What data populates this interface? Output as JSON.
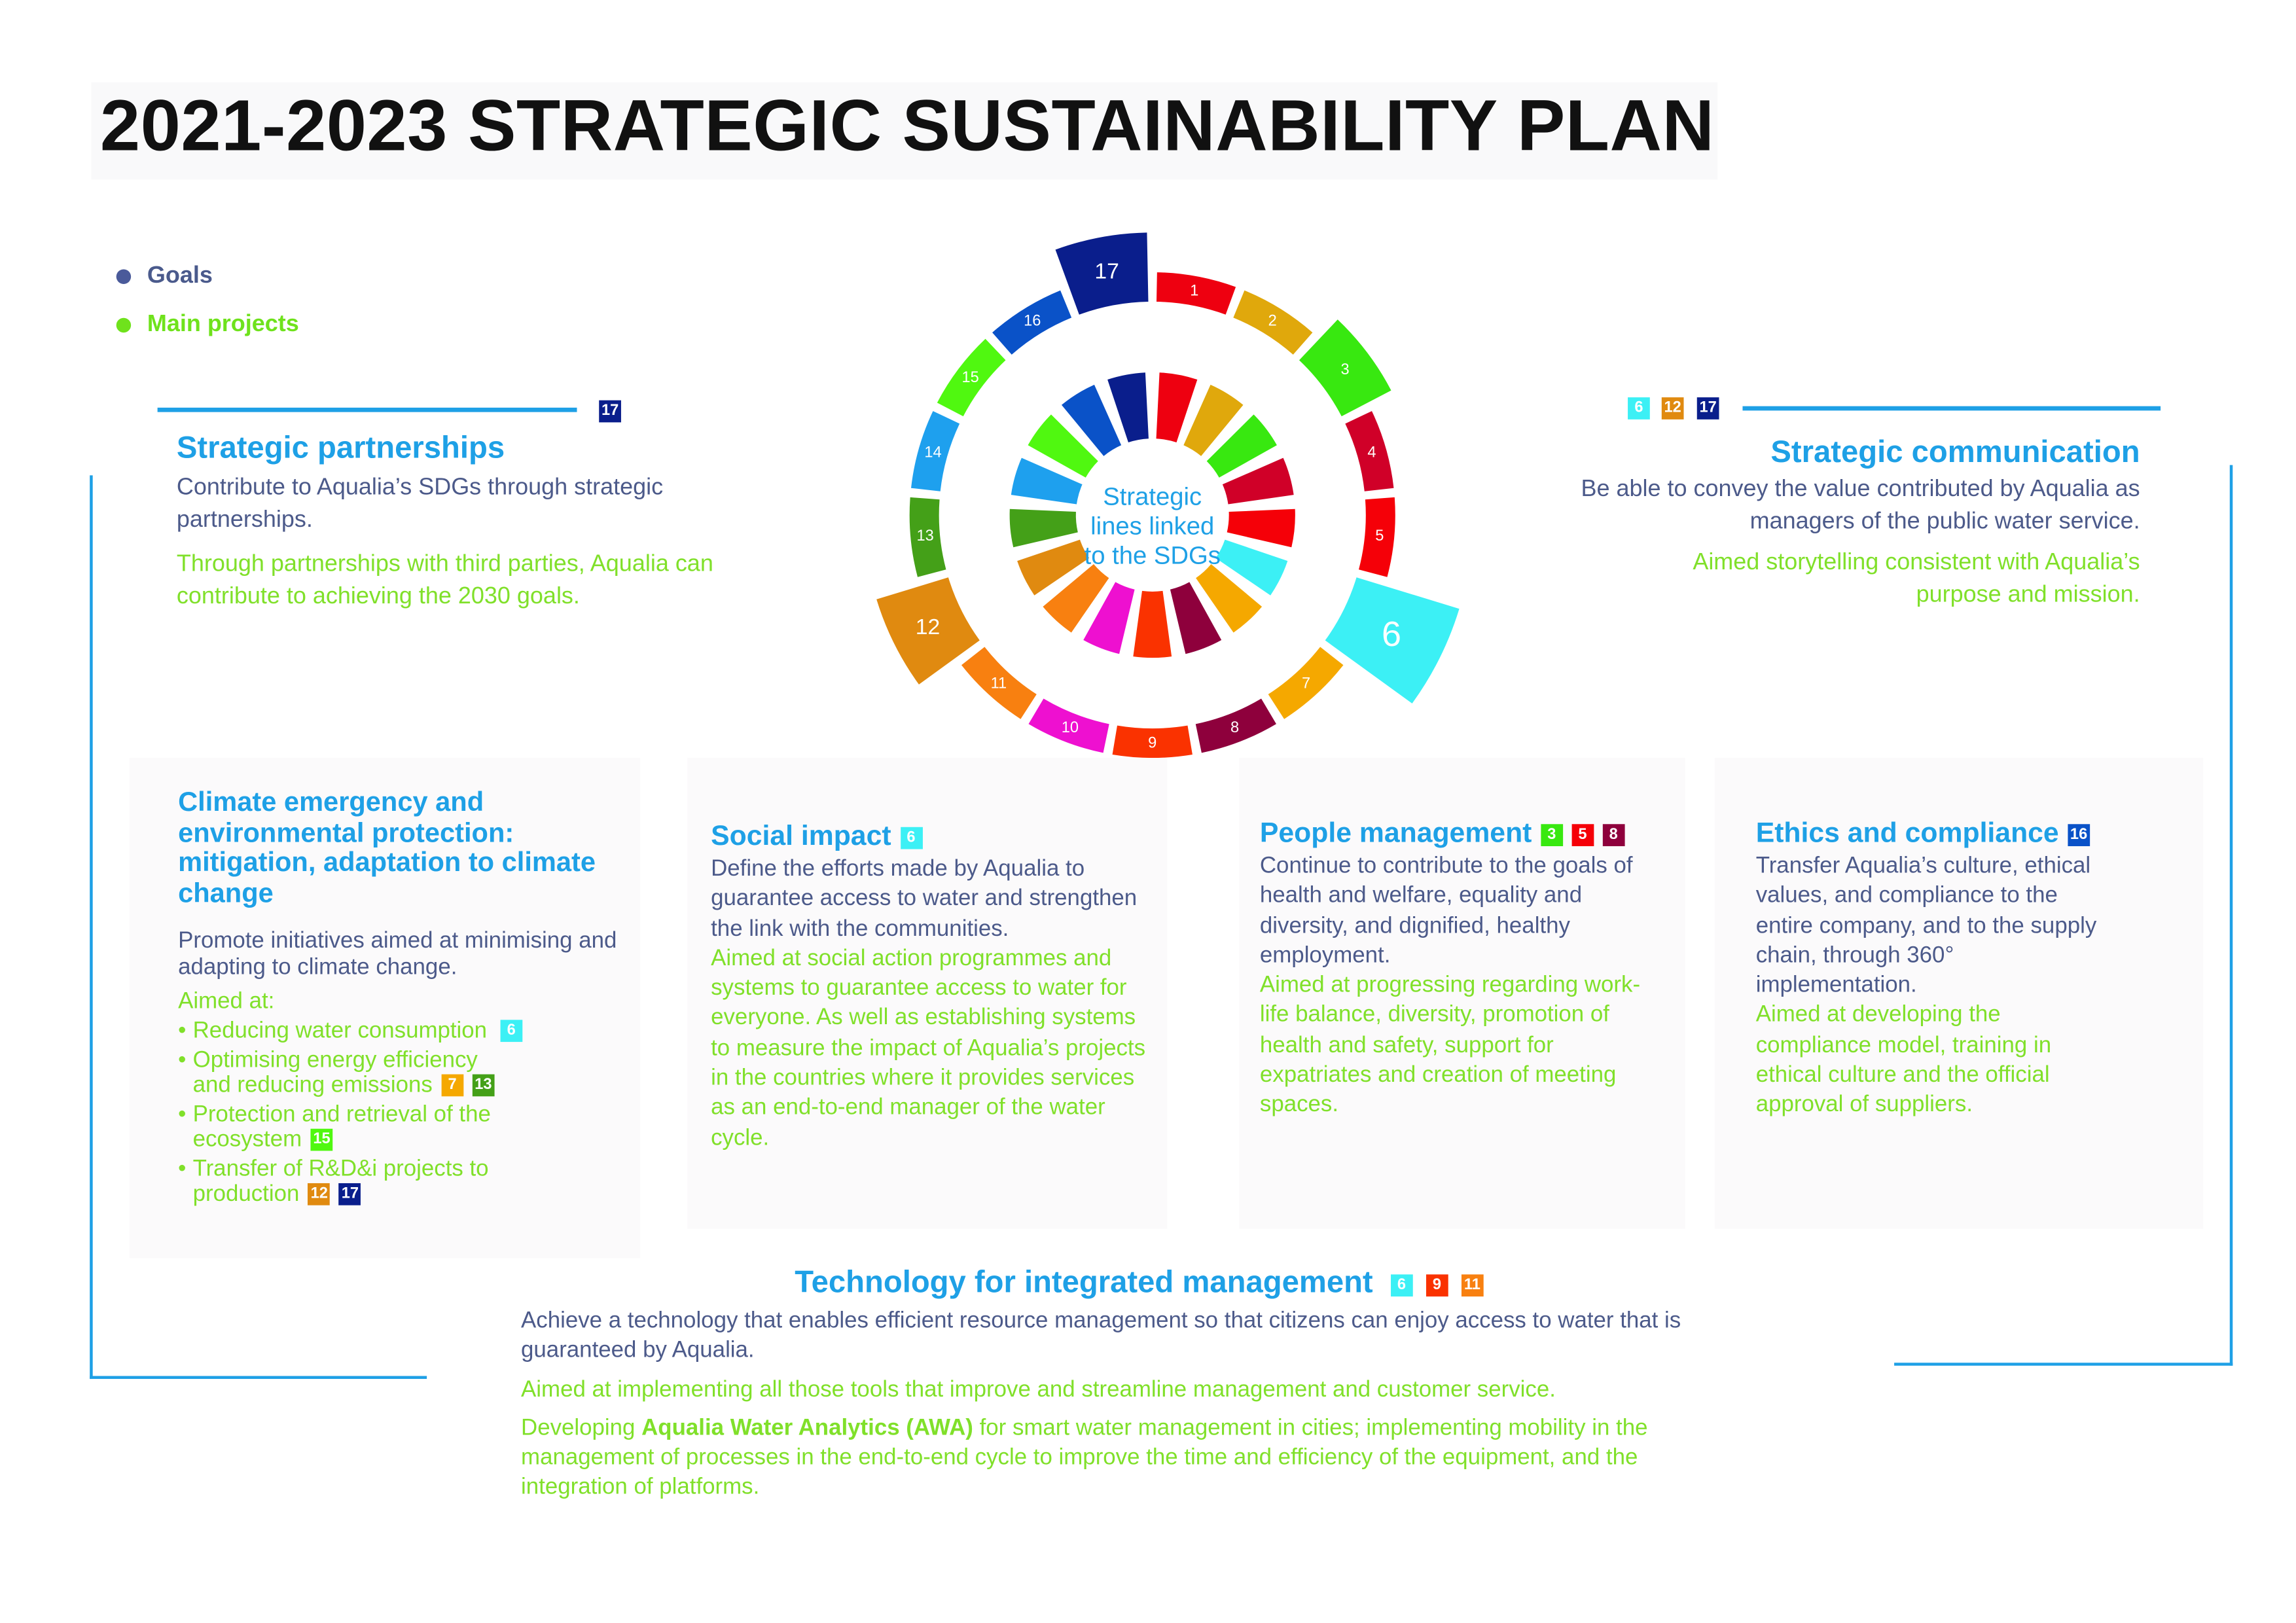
{
  "title": "2021-2023 STRATEGIC SUSTAINABILITY PLAN",
  "legend": [
    {
      "label": "Goals",
      "color": "#4a5a9a"
    },
    {
      "label": "Main projects",
      "color": "#6fe21c"
    }
  ],
  "wheel": {
    "center_label": [
      "Strategic",
      "lines linked",
      "to the SDGs"
    ],
    "sdgs": [
      {
        "n": "1",
        "color": "#ee0010"
      },
      {
        "n": "2",
        "color": "#e0a80c"
      },
      {
        "n": "3",
        "color": "#38e810",
        "highlighted": true
      },
      {
        "n": "4",
        "color": "#d00028"
      },
      {
        "n": "5",
        "color": "#f50008"
      },
      {
        "n": "6",
        "color": "#3cf0f5",
        "highlighted": true
      },
      {
        "n": "7",
        "color": "#f5a800"
      },
      {
        "n": "8",
        "color": "#8e003c"
      },
      {
        "n": "9",
        "color": "#fa3200"
      },
      {
        "n": "10",
        "color": "#ee10d0"
      },
      {
        "n": "11",
        "color": "#f88010"
      },
      {
        "n": "12",
        "color": "#e08a10",
        "highlighted": true
      },
      {
        "n": "13",
        "color": "#44a018"
      },
      {
        "n": "14",
        "color": "#1ea0ee"
      },
      {
        "n": "15",
        "color": "#50f810"
      },
      {
        "n": "16",
        "color": "#0a52c8"
      },
      {
        "n": "17",
        "color": "#0a1e8c",
        "highlighted": true
      }
    ]
  },
  "partnerships": {
    "title": "Strategic partnerships",
    "goal": "Contribute to Aqualia’s SDGs through strategic partnerships.",
    "project": "Through partnerships with third parties, Aqualia can contribute to achieving the 2030 goals.",
    "badges": [
      "17"
    ]
  },
  "communication": {
    "title": "Strategic communication",
    "goal": "Be able to convey the value contributed by Aqualia as managers of the public water service.",
    "project": "Aimed storytelling consistent with Aqualia’s purpose and mission.",
    "badges": [
      "6",
      "12",
      "17"
    ]
  },
  "climate": {
    "title": "Climate emergency and environmental protection: mitigation, adaptation to climate change",
    "goal": "Promote initiatives aimed at minimising and adapting to climate change.",
    "aimed": "Aimed at:",
    "items": [
      {
        "text": "Reducing water consumption",
        "badges": [
          "6"
        ]
      },
      {
        "text": "Optimising energy efficiency and reducing emissions",
        "badges": [
          "7",
          "13"
        ]
      },
      {
        "text": "Protection and retrieval of the ecosystem",
        "badges": [
          "15"
        ]
      },
      {
        "text": "Transfer of R&D&i projects to production",
        "badges": [
          "12",
          "17"
        ]
      }
    ]
  },
  "social": {
    "title": "Social impact",
    "badges": [
      "6"
    ],
    "goal": "Define the efforts made by Aqualia to guarantee access to water and strengthen the link with the communities.",
    "project": "Aimed at social action programmes and systems to guarantee access to water for everyone. As well as establishing systems to measure the impact of Aqualia’s projects in the countries where it provides services as an end-to-end manager of the water cycle."
  },
  "people": {
    "title": "People management",
    "badges": [
      "3",
      "5",
      "8"
    ],
    "goal": "Continue to contribute to the goals of health and welfare, equality and diversity, and dignified, healthy employment.",
    "project": "Aimed at progressing regarding work-life balance, diversity, promotion of health and safety, support for expatriates and creation of meeting spaces."
  },
  "ethics": {
    "title": "Ethics and compliance",
    "badges": [
      "16"
    ],
    "goal": "Transfer Aqualia’s culture, ethical values, and compliance to the entire company, and to the supply chain, through 360° implementation.",
    "project": "Aimed at developing the compliance model, training in ethical culture and the official approval of suppliers."
  },
  "technology": {
    "title": "Technology for integrated management",
    "badges": [
      "6",
      "9",
      "11"
    ],
    "goal": "Achieve a technology that enables efficient resource management so that citizens can enjoy access to water that is guaranteed by Aqualia.",
    "project1": "Aimed at implementing all those tools that improve and streamline management and customer service.",
    "project2_pre": "Developing ",
    "project2_bold": "Aqualia Water Analytics (AWA)",
    "project2_post": " for smart water management in cities; implementing mobility in the management of processes in the end-to-end cycle to improve the time and efficiency of the equipment, and the integration of platforms."
  }
}
